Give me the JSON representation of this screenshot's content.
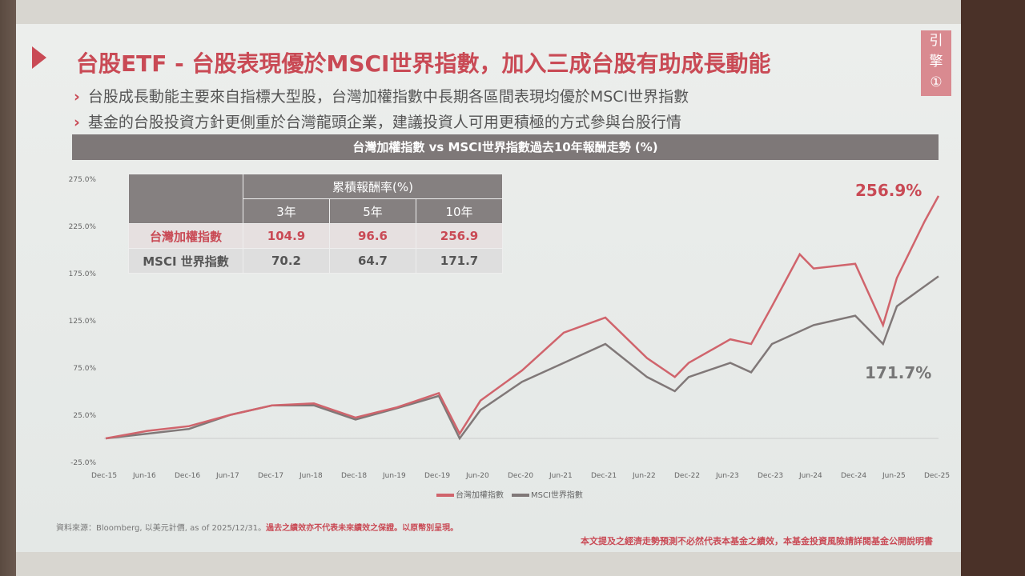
{
  "slide": {
    "title": "台股ETF - 台股表現優於MSCI世界指數，加入三成台股有助成長動能",
    "bullets": [
      "台股成長動能主要來自指標大型股，台灣加權指數中長期各區間表現均優於MSCI世界指數",
      "基金的台股投資方針更側重於台灣龍頭企業，建議投資人可用更積極的方式參與台股行情"
    ],
    "tag": [
      "引",
      "擎",
      "①"
    ],
    "source": "資料來源：Bloomberg, 以美元計價, as of 2025/12/31。",
    "source_warning": "過去之績效亦不代表未來績效之保證。以原幣別呈現。",
    "disclaimer": "本文提及之經濟走勢預測不必然代表本基金之績效，本基金投資風險請詳閱基金公開說明書"
  },
  "table": {
    "header": "累積報酬率(%)",
    "columns": [
      "3年",
      "5年",
      "10年"
    ],
    "rows": [
      {
        "name": "台灣加權指數",
        "values": [
          "104.9",
          "96.6",
          "256.9"
        ]
      },
      {
        "name": "MSCI 世界指數",
        "values": [
          "70.2",
          "64.7",
          "171.7"
        ]
      }
    ]
  },
  "colors": {
    "accent": "#c94a55",
    "taiex": "#d0646c",
    "msci": "#807878"
  },
  "chart_data": {
    "type": "line",
    "title": "台灣加權指數 vs MSCI世界指數過去10年報酬走勢 (%)",
    "x_ticks": [
      "Dec-15",
      "Jun-16",
      "Dec-16",
      "Jun-17",
      "Dec-17",
      "Jun-18",
      "Dec-18",
      "Jun-19",
      "Dec-19",
      "Jun-20",
      "Dec-20",
      "Jun-21",
      "Dec-21",
      "Jun-22",
      "Dec-22",
      "Jun-23",
      "Dec-23",
      "Jun-24",
      "Dec-24",
      "Jun-25",
      "Dec-25"
    ],
    "y_ticks": [
      "275.0%",
      "225.0%",
      "175.0%",
      "125.0%",
      "75.0%",
      "25.0%",
      "-25.0%"
    ],
    "ylim": [
      -25,
      275
    ],
    "legend": "bottom",
    "end_labels": [
      "256.9%",
      "171.7%"
    ],
    "series": [
      {
        "name": "台灣加權指數",
        "points": [
          [
            "Dec-15",
            0
          ],
          [
            "Jun-16",
            8
          ],
          [
            "Dec-16",
            13
          ],
          [
            "Jun-17",
            25
          ],
          [
            "Dec-17",
            35
          ],
          [
            "Jun-18",
            37
          ],
          [
            "Dec-18",
            22
          ],
          [
            "Jun-19",
            33
          ],
          [
            "Dec-19",
            48
          ],
          [
            "Mar-20",
            5
          ],
          [
            "Jun-20",
            40
          ],
          [
            "Dec-20",
            72
          ],
          [
            "Jun-21",
            112
          ],
          [
            "Dec-21",
            128
          ],
          [
            "Jun-22",
            85
          ],
          [
            "Oct-22",
            65
          ],
          [
            "Dec-22",
            80
          ],
          [
            "Jun-23",
            105
          ],
          [
            "Sep-23",
            100
          ],
          [
            "Dec-23",
            140
          ],
          [
            "Apr-24",
            195
          ],
          [
            "Jun-24",
            180
          ],
          [
            "Dec-24",
            185
          ],
          [
            "Apr-25",
            120
          ],
          [
            "Jun-25",
            170
          ],
          [
            "Oct-25",
            230
          ],
          [
            "Dec-25",
            256.9
          ]
        ]
      },
      {
        "name": "MSCI世界指數",
        "points": [
          [
            "Dec-15",
            0
          ],
          [
            "Jun-16",
            5
          ],
          [
            "Dec-16",
            10
          ],
          [
            "Jun-17",
            25
          ],
          [
            "Dec-17",
            35
          ],
          [
            "Jun-18",
            35
          ],
          [
            "Dec-18",
            20
          ],
          [
            "Jun-19",
            32
          ],
          [
            "Dec-19",
            45
          ],
          [
            "Mar-20",
            0
          ],
          [
            "Jun-20",
            30
          ],
          [
            "Dec-20",
            60
          ],
          [
            "Jun-21",
            80
          ],
          [
            "Dec-21",
            100
          ],
          [
            "Jun-22",
            65
          ],
          [
            "Oct-22",
            50
          ],
          [
            "Dec-22",
            65
          ],
          [
            "Jun-23",
            80
          ],
          [
            "Sep-23",
            70
          ],
          [
            "Dec-23",
            100
          ],
          [
            "Jun-24",
            120
          ],
          [
            "Dec-24",
            130
          ],
          [
            "Apr-25",
            100
          ],
          [
            "Jun-25",
            140
          ],
          [
            "Dec-25",
            171.7
          ]
        ]
      }
    ]
  }
}
